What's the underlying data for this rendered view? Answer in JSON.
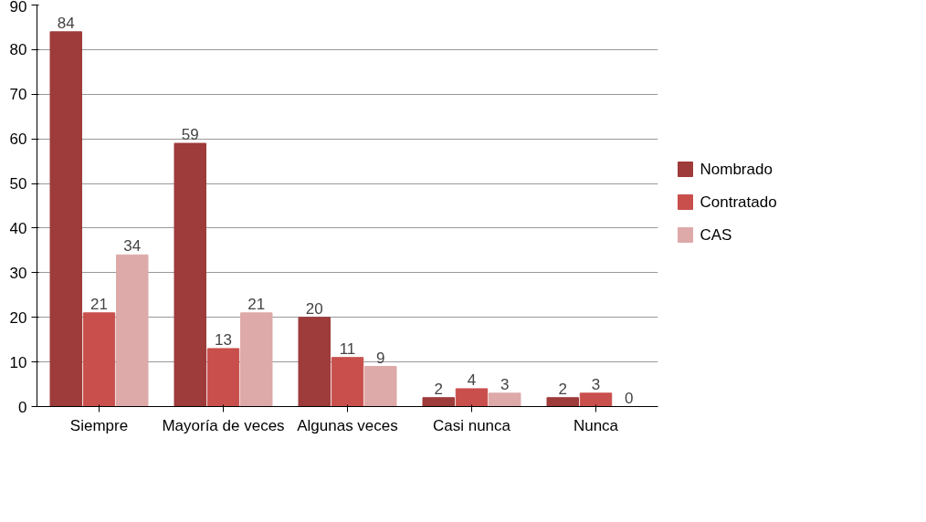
{
  "chart_data": {
    "type": "bar",
    "categories": [
      "Siempre",
      "Mayoría de veces",
      "Algunas veces",
      "Casi nunca",
      "Nunca"
    ],
    "series": [
      {
        "name": "Nombrado",
        "color": "#9e3b3b",
        "values": [
          84,
          59,
          20,
          2,
          2
        ]
      },
      {
        "name": "Contratado",
        "color": "#c84f4c",
        "values": [
          21,
          13,
          11,
          4,
          3
        ]
      },
      {
        "name": "CAS",
        "color": "#ddaaa9",
        "values": [
          34,
          21,
          9,
          3,
          0
        ]
      }
    ],
    "ylim": [
      0,
      90
    ],
    "yticks": [
      0,
      10,
      20,
      30,
      40,
      50,
      60,
      70,
      80,
      90
    ],
    "grid": "y",
    "legend": "right",
    "data_labels": true
  }
}
